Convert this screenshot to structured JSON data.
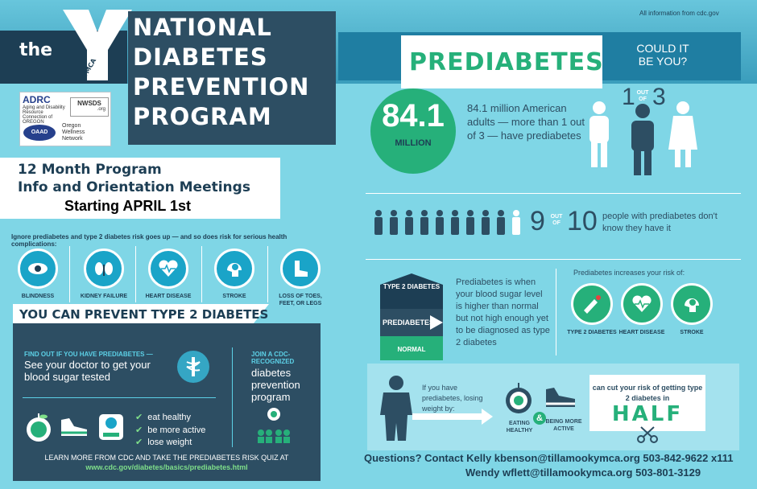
{
  "header": {
    "logo_text": "the",
    "ymca_text": "YMCA",
    "title_lines": [
      "NATIONAL",
      "DIABETES",
      "PREVENTION",
      "PROGRAM"
    ]
  },
  "partners": {
    "adrc": "ADRC",
    "adrc_sub": "Aging and Disability Resource Connection of OREGON",
    "nwsds": "NWSDS",
    "nwsds_sub": ".org",
    "oaad": "OAAD",
    "owf_lines": [
      "Oregon",
      "Wellness",
      "Network"
    ]
  },
  "meetings": {
    "line1": "12 Month Program",
    "line2": "Info and Orientation Meetings",
    "line3": "Starting APRIL 1st"
  },
  "risks": {
    "header": "Ignore prediabetes and type 2 diabetes risk goes up — and so does risk for serious health complications:",
    "items": [
      {
        "label": "BLINDNESS",
        "icon": "eye-icon"
      },
      {
        "label": "KIDNEY FAILURE",
        "icon": "kidney-icon"
      },
      {
        "label": "HEART DISEASE",
        "icon": "heart-icon"
      },
      {
        "label": "STROKE",
        "icon": "brain-icon"
      },
      {
        "label": "LOSS OF TOES, FEET, OR LEGS",
        "icon": "foot-icon"
      }
    ]
  },
  "prevent": {
    "banner": "YOU CAN PREVENT TYPE 2 DIABETES",
    "findout_title": "FIND OUT IF YOU HAVE PREDIABETES —",
    "findout_body": "See your doctor to get your blood sugar tested",
    "join_title": "JOIN A CDC-RECOGNIZED",
    "join_body": "diabetes prevention program",
    "checks": [
      "eat healthy",
      "be more active",
      "lose weight"
    ],
    "learn_line1": "LEARN MORE FROM CDC AND TAKE THE PREDIABETES RISK QUIZ AT",
    "learn_line2": "www.cdc.gov/diabetes/basics/prediabetes.html"
  },
  "right": {
    "source": "All information from cdc.gov",
    "title": "PREDIABETES",
    "could_it": "COULD IT BE YOU?",
    "big_number": "84.1",
    "big_unit": "MILLION",
    "stat_text": "84.1 million American adults — more than 1 out of 3 — have prediabetes",
    "one_label": "1",
    "out_of_label": "OUT OF",
    "three_label": "3",
    "nine_label": "9",
    "ten_label": "10",
    "nine_text": "people with prediabetes don't know they have it",
    "levels": [
      "TYPE 2 DIABETES",
      "PREDIABETES",
      "NORMAL"
    ],
    "level_desc": "Prediabetes is when your blood sugar level is higher than normal but not high enough yet to be diagnosed as type 2 diabetes",
    "increases": "Prediabetes increases your risk of:",
    "risk2": [
      {
        "label": "TYPE 2 DIABETES",
        "icon": "diabetes-icon"
      },
      {
        "label": "HEART DISEASE",
        "icon": "heart-icon"
      },
      {
        "label": "STROKE",
        "icon": "brain-icon"
      }
    ],
    "weight_text": "If you have prediabetes, losing weight by:",
    "eating_label": "EATING HEALTHY",
    "amp": "&",
    "active_label": "BEING MORE ACTIVE",
    "half_small": "can cut your risk of getting type 2 diabetes in",
    "half_big": "HALF"
  },
  "contact": {
    "line1": "Questions? Contact Kelly kbenson@tillamookymca.org 503-842-9622 x111",
    "line2": "Wendy wflett@tillamookymca.org 503-801-3129"
  },
  "colors": {
    "green": "#26b07a",
    "navy": "#2d4e63",
    "cyan": "#1aa4c8"
  }
}
